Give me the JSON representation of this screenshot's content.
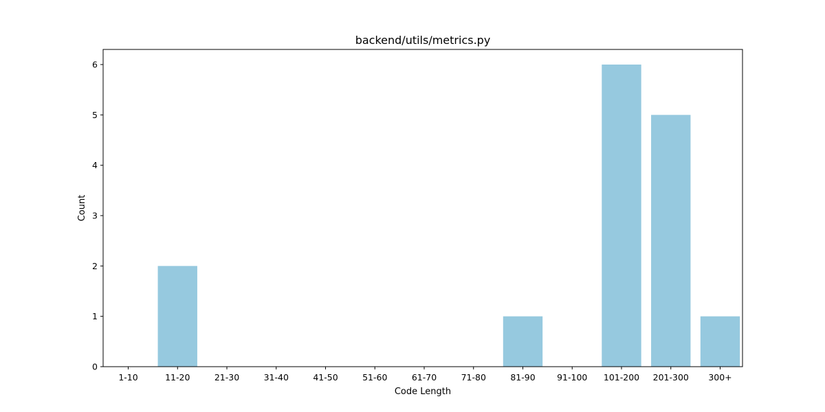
{
  "chart_data": {
    "type": "bar",
    "title": "backend/utils/metrics.py",
    "xlabel": "Code Length",
    "ylabel": "Count",
    "categories": [
      "1-10",
      "11-20",
      "21-30",
      "31-40",
      "41-50",
      "51-60",
      "61-70",
      "71-80",
      "81-90",
      "91-100",
      "101-200",
      "201-300",
      "300+"
    ],
    "values": [
      0,
      2,
      0,
      0,
      0,
      0,
      0,
      0,
      1,
      0,
      6,
      5,
      1
    ],
    "ylim": [
      0,
      6.3
    ],
    "yticks": [
      0,
      1,
      2,
      3,
      4,
      5,
      6
    ],
    "bar_color": "#96c9df",
    "grid": false,
    "legend": "none"
  }
}
